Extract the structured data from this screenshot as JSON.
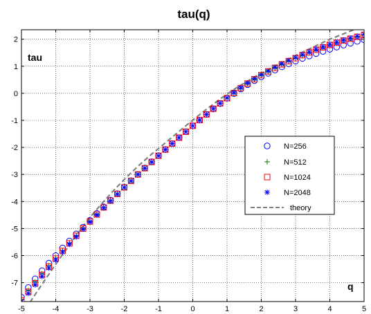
{
  "chart_data": {
    "type": "scatter",
    "title": "tau(q)",
    "xlabel": "q",
    "ylabel": "tau",
    "xlim": [
      -5,
      5
    ],
    "ylim": [
      -7.7,
      2.35
    ],
    "xticks": [
      -5,
      -4,
      -3,
      -2,
      -1,
      0,
      1,
      2,
      3,
      4,
      5
    ],
    "yticks": [
      2,
      1,
      0,
      -1,
      -2,
      -3,
      -4,
      -5,
      -6,
      -7
    ],
    "grid": true,
    "legend_position": "right",
    "q": [
      -5.0,
      -4.8,
      -4.6,
      -4.4,
      -4.2,
      -4.0,
      -3.8,
      -3.6,
      -3.4,
      -3.2,
      -3.0,
      -2.8,
      -2.6,
      -2.4,
      -2.2,
      -2.0,
      -1.8,
      -1.6,
      -1.4,
      -1.2,
      -1.0,
      -0.8,
      -0.6,
      -0.4,
      -0.2,
      0.0,
      0.2,
      0.4,
      0.6,
      0.8,
      1.0,
      1.2,
      1.4,
      1.6,
      1.8,
      2.0,
      2.2,
      2.4,
      2.6,
      2.8,
      3.0,
      3.2,
      3.4,
      3.6,
      3.8,
      4.0,
      4.2,
      4.4,
      4.6,
      4.8,
      5.0
    ],
    "series": [
      {
        "name": "N=256",
        "marker": "circle",
        "color": "#0000ff",
        "values": [
          -7.54,
          -7.18,
          -6.86,
          -6.56,
          -6.28,
          -6.0,
          -5.72,
          -5.46,
          -5.2,
          -4.95,
          -4.7,
          -4.44,
          -4.2,
          -3.95,
          -3.71,
          -3.47,
          -3.23,
          -3.0,
          -2.76,
          -2.53,
          -2.31,
          -2.08,
          -1.86,
          -1.64,
          -1.42,
          -1.2,
          -0.99,
          -0.78,
          -0.58,
          -0.38,
          -0.19,
          -0.01,
          0.16,
          0.32,
          0.47,
          0.61,
          0.74,
          0.86,
          0.98,
          1.09,
          1.19,
          1.29,
          1.38,
          1.47,
          1.55,
          1.63,
          1.71,
          1.78,
          1.85,
          1.92,
          1.98
        ]
      },
      {
        "name": "N=512",
        "marker": "plus",
        "color": "#008000",
        "values": [
          -7.62,
          -7.3,
          -6.98,
          -6.68,
          -6.38,
          -6.09,
          -5.81,
          -5.53,
          -5.26,
          -4.99,
          -4.73,
          -4.47,
          -4.22,
          -3.97,
          -3.72,
          -3.48,
          -3.24,
          -3.0,
          -2.77,
          -2.54,
          -2.31,
          -2.08,
          -1.86,
          -1.64,
          -1.42,
          -1.2,
          -0.99,
          -0.78,
          -0.57,
          -0.37,
          -0.18,
          0.0,
          0.18,
          0.35,
          0.51,
          0.66,
          0.8,
          0.93,
          1.06,
          1.18,
          1.29,
          1.4,
          1.5,
          1.6,
          1.69,
          1.78,
          1.86,
          1.94,
          2.01,
          2.08,
          2.15
        ]
      },
      {
        "name": "N=1024",
        "marker": "square",
        "color": "#ff0000",
        "values": [
          -7.66,
          -7.34,
          -7.02,
          -6.71,
          -6.41,
          -6.11,
          -5.83,
          -5.55,
          -5.27,
          -5.0,
          -4.74,
          -4.48,
          -4.22,
          -3.97,
          -3.72,
          -3.48,
          -3.24,
          -3.0,
          -2.77,
          -2.54,
          -2.31,
          -2.08,
          -1.86,
          -1.64,
          -1.42,
          -1.2,
          -0.99,
          -0.78,
          -0.57,
          -0.37,
          -0.18,
          0.01,
          0.19,
          0.36,
          0.52,
          0.67,
          0.81,
          0.94,
          1.07,
          1.19,
          1.3,
          1.41,
          1.51,
          1.61,
          1.7,
          1.79,
          1.87,
          1.95,
          2.02,
          2.09,
          2.16
        ]
      },
      {
        "name": "N=2048",
        "marker": "star",
        "color": "#0000ff",
        "values": [
          -7.7,
          -7.4,
          -7.08,
          -6.77,
          -6.46,
          -6.16,
          -5.87,
          -5.58,
          -5.3,
          -5.02,
          -4.75,
          -4.49,
          -4.23,
          -3.98,
          -3.73,
          -3.48,
          -3.24,
          -3.0,
          -2.77,
          -2.54,
          -2.31,
          -2.08,
          -1.86,
          -1.64,
          -1.42,
          -1.2,
          -0.99,
          -0.78,
          -0.57,
          -0.37,
          -0.17,
          0.02,
          0.2,
          0.37,
          0.53,
          0.68,
          0.82,
          0.96,
          1.09,
          1.21,
          1.32,
          1.43,
          1.53,
          1.63,
          1.72,
          1.81,
          1.89,
          1.97,
          2.04,
          2.11,
          2.18
        ]
      },
      {
        "name": "theory",
        "marker": "line-dashed",
        "color": "#808080",
        "values": [
          -8.2,
          -7.82,
          -7.44,
          -7.06,
          -6.69,
          -6.32,
          -5.96,
          -5.61,
          -5.26,
          -4.92,
          -4.59,
          -4.29,
          -4.0,
          -3.72,
          -3.45,
          -3.19,
          -2.94,
          -2.7,
          -2.47,
          -2.25,
          -2.04,
          -1.83,
          -1.62,
          -1.41,
          -1.2,
          -0.99,
          -0.79,
          -0.59,
          -0.4,
          -0.21,
          -0.03,
          0.14,
          0.3,
          0.45,
          0.6,
          0.74,
          0.88,
          1.01,
          1.14,
          1.27,
          1.4,
          1.52,
          1.64,
          1.76,
          1.88,
          2.0,
          2.1,
          2.2,
          2.3,
          2.4,
          2.5
        ]
      }
    ]
  }
}
